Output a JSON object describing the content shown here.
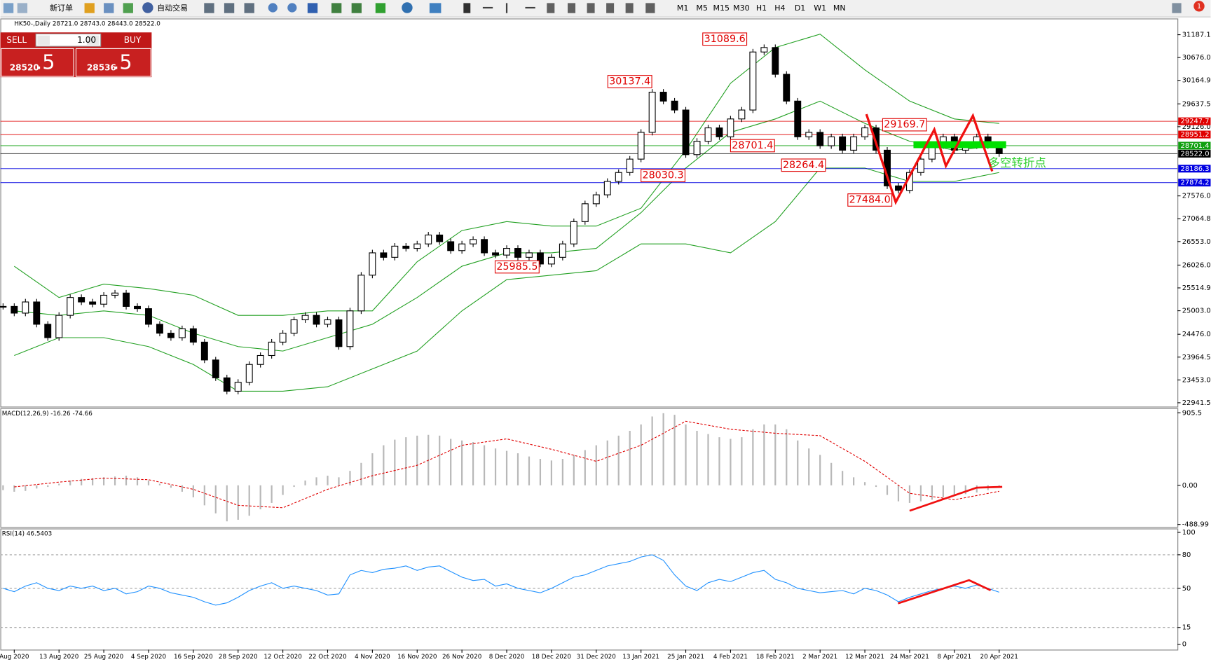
{
  "toolbar": {
    "new_order": "新订单",
    "auto_trading": "自动交易",
    "timeframes": [
      "M1",
      "M5",
      "M15",
      "M30",
      "H1",
      "H4",
      "D1",
      "W1",
      "MN"
    ],
    "notifications": 1
  },
  "trade_panel": {
    "sell": "SELL",
    "lot": "1.00",
    "buy": "BUY",
    "bid_main": 28520,
    "bid_frac": ".5",
    "ask_main": 28536,
    "ask_frac": ".5"
  },
  "chart_data": [
    {
      "type": "candlestick",
      "title": "HK50-,Daily  28721.0 28743.0 28443.0 28522.0",
      "categories": [
        null,
        "Aug 2020",
        null,
        null,
        null,
        "13 Aug 2020",
        null,
        null,
        null,
        "25 Aug 2020",
        null,
        null,
        null,
        "4 Sep 2020",
        null,
        null,
        null,
        "16 Sep 2020",
        null,
        null,
        null,
        "28 Sep 2020",
        null,
        null,
        null,
        "12 Oct 2020",
        null,
        null,
        null,
        "22 Oct 2020",
        null,
        null,
        null,
        "4 Nov 2020",
        null,
        null,
        null,
        "16 Nov 2020",
        null,
        null,
        null,
        "26 Nov 2020",
        null,
        null,
        null,
        "8 Dec 2020",
        null,
        null,
        null,
        "18 Dec 2020",
        null,
        null,
        null,
        "31 Dec 2020",
        null,
        null,
        null,
        "13 Jan 2021",
        null,
        null,
        null,
        "25 Jan 2021",
        null,
        null,
        null,
        "4 Feb 2021",
        null,
        null,
        null,
        "18 Feb 2021",
        null,
        null,
        null,
        "2 Mar 2021",
        null,
        null,
        null,
        "12 Mar 2021",
        null,
        null,
        null,
        "24 Mar 2021",
        null,
        null,
        null,
        "8 Apr 2021",
        null,
        null,
        null,
        "20 Apr 2021"
      ],
      "values": [
        25100,
        24950,
        25200,
        24700,
        24400,
        24900,
        25300,
        25200,
        25150,
        25350,
        25400,
        25100,
        25050,
        24700,
        24500,
        24400,
        24600,
        24300,
        23900,
        23500,
        23200,
        23400,
        23800,
        24000,
        24300,
        24500,
        24800,
        24900,
        24700,
        24800,
        24200,
        25000,
        25800,
        26300,
        26200,
        26450,
        26400,
        26500,
        26700,
        26550,
        26350,
        26500,
        26600,
        26300,
        26250,
        26400,
        26200,
        26300,
        26050,
        26200,
        26500,
        27000,
        27400,
        27600,
        27900,
        28100,
        28400,
        29000,
        29900,
        29700,
        29500,
        28500,
        28800,
        29100,
        28900,
        29300,
        29500,
        30800,
        30900,
        30300,
        29700,
        28900,
        29000,
        28700,
        28900,
        28600,
        28900,
        29100,
        28600,
        27800,
        27700,
        28100,
        28400,
        28700,
        28900,
        28600,
        28700,
        28900,
        28700,
        28522
      ],
      "bands": {
        "color": "#22a022",
        "x": [
          1,
          5,
          9,
          13,
          17,
          21,
          25,
          29,
          33,
          37,
          41,
          45,
          49,
          53,
          57,
          61,
          65,
          69,
          73,
          77,
          81,
          85,
          89
        ],
        "upper": [
          26000,
          25300,
          25600,
          25500,
          25350,
          24900,
          24900,
          25000,
          25000,
          26100,
          26800,
          27000,
          26900,
          26900,
          27300,
          28600,
          30100,
          30900,
          31200,
          30400,
          29700,
          29300,
          29200
        ],
        "middle": [
          25000,
          24900,
          25000,
          24900,
          24500,
          24200,
          24100,
          24400,
          24700,
          25300,
          26000,
          26300,
          26300,
          26400,
          27200,
          28200,
          29000,
          29300,
          29700,
          29200,
          28800,
          28600,
          28700
        ],
        "lower": [
          24000,
          24400,
          24400,
          24200,
          23800,
          23200,
          23200,
          23300,
          23700,
          24100,
          25000,
          25700,
          25800,
          25900,
          26500,
          26500,
          26300,
          27000,
          28200,
          28200,
          27900,
          27900,
          28100
        ]
      },
      "ylim": [
        22872.4,
        31532.8
      ],
      "yticks": [
        31187.1,
        {
          "value": 30676,
          "label": "30676.0"
        },
        30164.9,
        29637.5,
        {
          "value": 29126,
          "label": "29126.0"
        },
        {
          "value": 27576,
          "label": "27576.0"
        },
        27064.8,
        {
          "value": 26553,
          "label": "26553.0"
        },
        {
          "value": 26026,
          "label": "26026.0"
        },
        25514.9,
        {
          "value": 25003,
          "label": "25003.0"
        },
        {
          "value": 24476,
          "label": "24476.0"
        },
        23964.5,
        {
          "value": 23453,
          "label": "23453.0"
        },
        22941.5
      ],
      "levels": [
        {
          "value": 29247.7,
          "color": "#e00000"
        },
        {
          "value": 28951.2,
          "color": "#e00000"
        },
        {
          "value": 28701.4,
          "color": "#10a010"
        },
        {
          "value": 28522,
          "label": "28522.0",
          "color": "#000000"
        },
        {
          "value": 28186.3,
          "color": "#0000e0"
        },
        {
          "value": 27874.2,
          "color": "#0000e0"
        }
      ],
      "annotations": [
        31089.6,
        30137.4,
        29169.7,
        28701.4,
        28264.4,
        28030.3,
        {
          "value": 27484,
          "label": "27484.0"
        },
        25985.5
      ],
      "note": "多空转折点"
    },
    {
      "type": "macd",
      "title": "MACD(12,26,9) -16.26 -74.66",
      "color": "#b8b8b8",
      "values": [
        -60,
        -80,
        -70,
        -40,
        -20,
        20,
        60,
        80,
        90,
        100,
        110,
        120,
        100,
        60,
        20,
        -30,
        -80,
        -150,
        -250,
        -350,
        -450,
        -430,
        -380,
        -300,
        -220,
        -120,
        -20,
        60,
        100,
        120,
        100,
        180,
        280,
        400,
        500,
        570,
        600,
        620,
        630,
        620,
        580,
        560,
        540,
        500,
        460,
        430,
        400,
        360,
        330,
        310,
        330,
        380,
        440,
        500,
        560,
        620,
        680,
        760,
        860,
        900,
        880,
        760,
        680,
        640,
        600,
        580,
        600,
        700,
        760,
        760,
        700,
        560,
        460,
        380,
        280,
        180,
        100,
        40,
        -20,
        -120,
        -200,
        -220,
        -200,
        -180,
        -150,
        -130,
        -110,
        -90,
        -60,
        -16.26
      ],
      "signal": {
        "color": "#e00000",
        "x": [
          1,
          5,
          9,
          13,
          17,
          21,
          25,
          29,
          33,
          37,
          41,
          45,
          49,
          53,
          57,
          61,
          65,
          69,
          73,
          77,
          81,
          85,
          89
        ],
        "values": [
          -20,
          40,
          90,
          70,
          -50,
          -250,
          -280,
          -50,
          120,
          250,
          500,
          580,
          450,
          300,
          500,
          800,
          700,
          650,
          620,
          300,
          -100,
          -180,
          -74.66
        ]
      },
      "ylim": [
        -510.6,
        953.7
      ],
      "yticks": [
        905.5,
        {
          "value": 0,
          "label": "0.00"
        },
        -488.99
      ]
    },
    {
      "type": "line",
      "title": "RSI(14) 46.5403",
      "color": "#1e90ff",
      "values": [
        50,
        47,
        52,
        55,
        50,
        48,
        52,
        50,
        52,
        48,
        50,
        45,
        47,
        52,
        50,
        46,
        44,
        42,
        38,
        35,
        37,
        42,
        48,
        52,
        55,
        50,
        52,
        50,
        48,
        44,
        45,
        62,
        66,
        64,
        67,
        68,
        70,
        66,
        69,
        70,
        65,
        60,
        57,
        58,
        52,
        54,
        50,
        48,
        46,
        50,
        55,
        60,
        62,
        66,
        70,
        72,
        74,
        78,
        80,
        75,
        62,
        52,
        48,
        55,
        58,
        56,
        60,
        64,
        66,
        58,
        55,
        50,
        48,
        46,
        47,
        48,
        45,
        50,
        48,
        44,
        38,
        42,
        45,
        48,
        50,
        52,
        50,
        53,
        50,
        46.5403
      ],
      "ylim": [
        0,
        100
      ],
      "yticks": [
        100,
        80,
        50,
        15,
        0
      ]
    }
  ]
}
